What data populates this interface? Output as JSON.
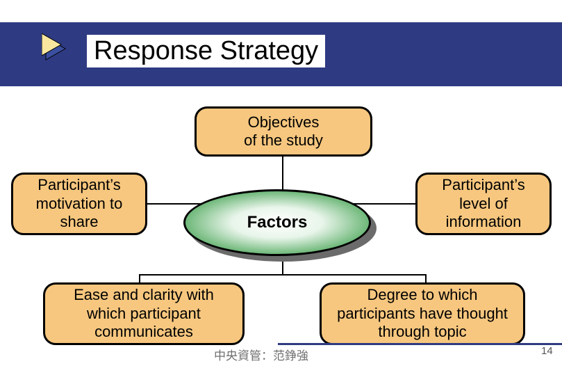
{
  "slide": {
    "title": "Response Strategy",
    "background": "#ffffff",
    "header_color": "#2e3b82",
    "arrow_colors": {
      "back": "#3a4fa0",
      "front": "#f9e79f",
      "border": "#000000"
    }
  },
  "diagram": {
    "nodes": [
      {
        "id": "objectives",
        "label": "Objectives\nof the study",
        "shape": "rounded-box",
        "fill": "#f7c77f",
        "border": "#000000",
        "fontsize": 22
      },
      {
        "id": "motivation",
        "label": "Participant's\nmotivation to\nshare",
        "shape": "rounded-box",
        "fill": "#f7c77f",
        "border": "#000000",
        "fontsize": 22
      },
      {
        "id": "information",
        "label": "Participant's\nlevel of\ninformation",
        "shape": "rounded-box",
        "fill": "#f7c77f",
        "border": "#000000",
        "fontsize": 22
      },
      {
        "id": "factors",
        "label": "Factors",
        "shape": "ellipse",
        "fill_gradient": [
          "#ffffff",
          "#4fa85c"
        ],
        "border": "#000000",
        "fontsize": 24,
        "fontweight": "bold"
      },
      {
        "id": "ease",
        "label": "Ease and clarity with\nwhich participant\ncommunicates",
        "shape": "rounded-box",
        "fill": "#f7c77f",
        "border": "#000000",
        "fontsize": 22
      },
      {
        "id": "degree",
        "label": "Degree to which\nparticipants have thought\nthrough topic",
        "shape": "rounded-box",
        "fill": "#f7c77f",
        "border": "#000000",
        "fontsize": 22
      }
    ],
    "edges": [
      {
        "from": "objectives",
        "to": "factors"
      },
      {
        "from": "motivation",
        "to": "factors"
      },
      {
        "from": "information",
        "to": "factors"
      },
      {
        "from": "factors",
        "to": "ease"
      },
      {
        "from": "factors",
        "to": "degree"
      }
    ],
    "edge_color": "#000000",
    "edge_width": 2
  },
  "footer": {
    "text": "中央資管：范錚強",
    "color": "#707070",
    "fontsize": 17,
    "line_color": "#2e3b82",
    "page_number": "14"
  }
}
